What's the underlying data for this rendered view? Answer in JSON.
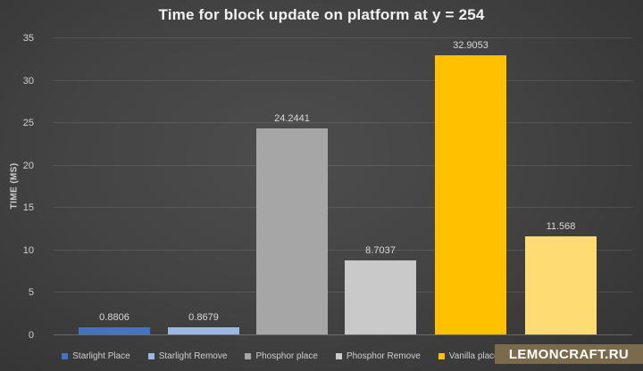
{
  "title": "Time for block update on platform at y = 254",
  "watermark": "LEMONCRAFT.RU",
  "chart_data": {
    "type": "bar",
    "title": "Time for block update on platform at y = 254",
    "xlabel": "",
    "ylabel": "TIME (MS)",
    "ylim": [
      0,
      35
    ],
    "yticks": [
      0,
      5,
      10,
      15,
      20,
      25,
      30,
      35
    ],
    "grid": true,
    "legend_position": "bottom",
    "categories": [
      "Starlight Place",
      "Starlight Remove",
      "Phosphor place",
      "Phosphor Remove",
      "Vanilla place",
      ""
    ],
    "values": [
      0.8806,
      0.8679,
      24.2441,
      8.7037,
      32.9053,
      11.568
    ],
    "data_labels": [
      "0.8806",
      "0.8679",
      "24.2441",
      "8.7037",
      "32.9053",
      "11.568"
    ],
    "colors": [
      "#4472C4",
      "#9DB7E3",
      "#A6A6A6",
      "#C9C9C9",
      "#FFC000",
      "#FFDC73"
    ],
    "background": "#3d3d3d",
    "accent_watermark_color": "#7B6A4C"
  }
}
